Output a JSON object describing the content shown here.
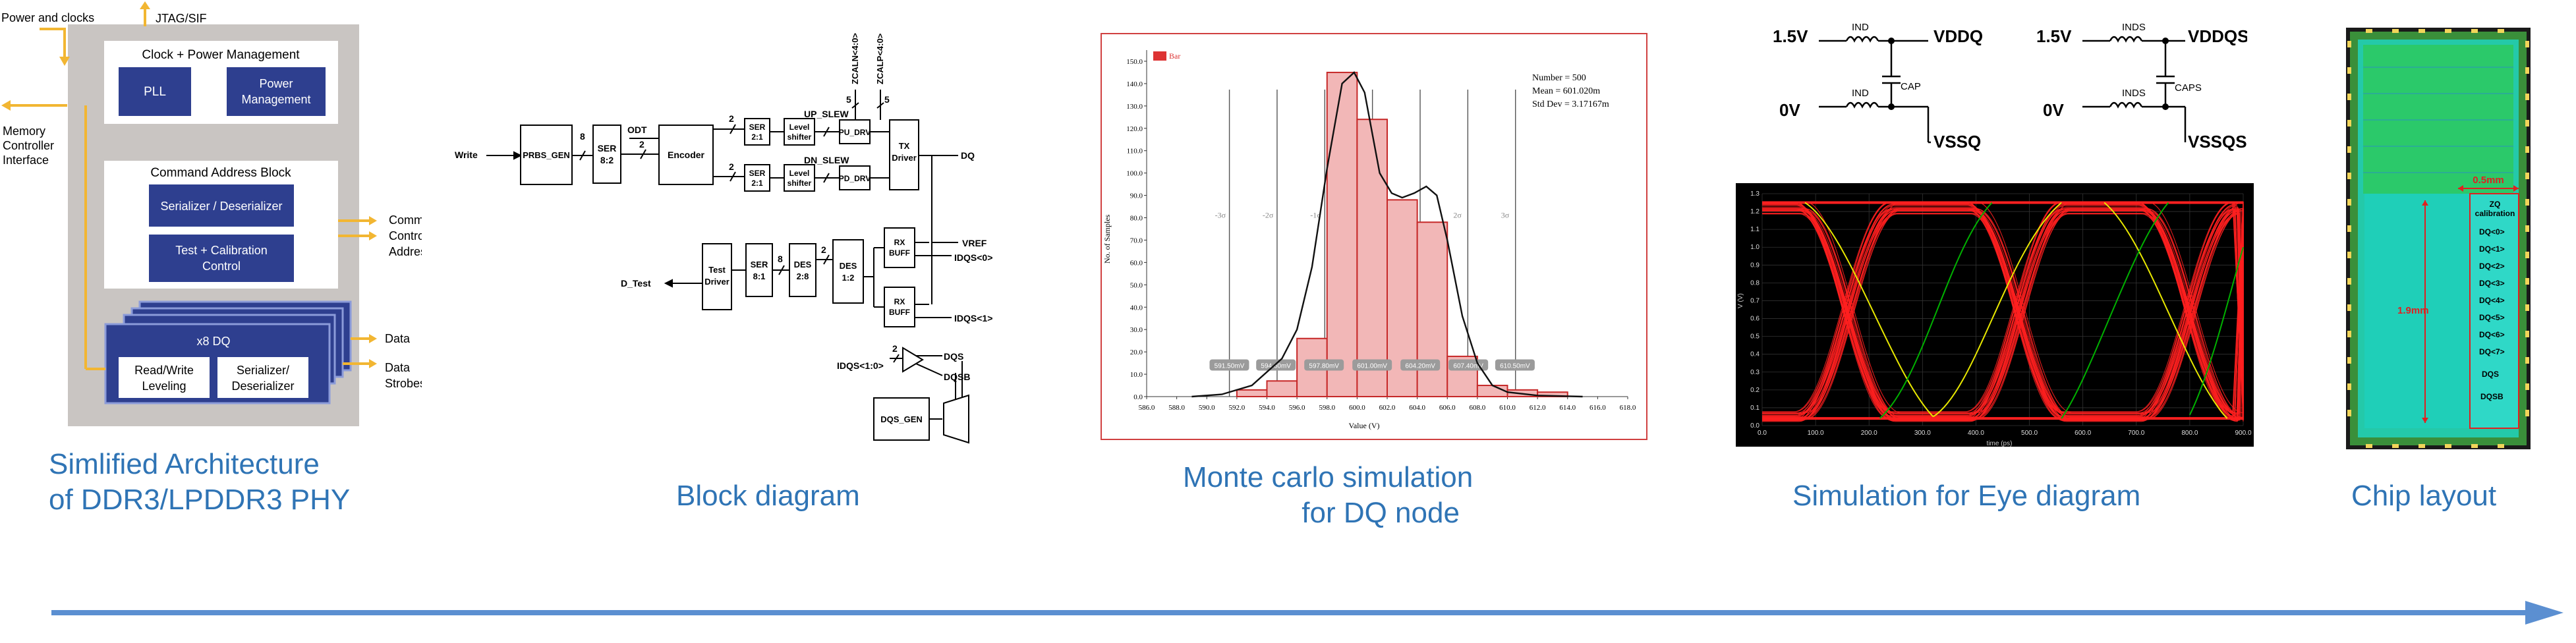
{
  "arch": {
    "power_clocks": "Power and clocks",
    "jtag": "JTAG/SIF",
    "memory_controller": [
      "Memory",
      "Controller",
      "Interface"
    ],
    "clock_power_title": "Clock + Power Management",
    "pll": "PLL",
    "power_mgmt": [
      "Power",
      "Management"
    ],
    "cmd_addr_title": "Command Address Block",
    "serdes": "Serializer / Deserializer",
    "test_cal": [
      "Test + Calibration",
      "Control"
    ],
    "commands": "Commands",
    "control": "Control",
    "addresses": "Addresses",
    "dq_title": "x8 DQ",
    "rw_leveling": [
      "Read/Write",
      "Leveling"
    ],
    "serdes2": [
      "Serializer/",
      "Deserializer"
    ],
    "data": "Data",
    "data_strobes": [
      "Data",
      "Strobes"
    ],
    "caption": [
      "Simlified Architecture",
      "of DDR3/LPDDR3 PHY"
    ]
  },
  "block": {
    "write": "Write",
    "prbs_gen": "PRBS_GEN",
    "n8": "8",
    "ser82": [
      "SER",
      "8:2"
    ],
    "odt": "ODT",
    "n2": "2",
    "encoder": "Encoder",
    "ser21": [
      "SER",
      "2:1"
    ],
    "level_shifter": [
      "Level",
      "shifter"
    ],
    "up_slew": "UP_SLEW",
    "dn_slew": "DN_SLEW",
    "pu_drv": "PU_DRV",
    "pd_drv": "PD_DRV",
    "zcaln": "ZCALN<4:0>",
    "zcalp": "ZCALP<4:0>",
    "n5": "5",
    "tx_driver": [
      "TX",
      "Driver"
    ],
    "dq": "DQ",
    "vref": "VREF",
    "idqs0": "IDQS<0>",
    "idqs1": "IDQS<1>",
    "rx_buff": [
      "RX",
      "BUFF"
    ],
    "des12": [
      "DES",
      "1:2"
    ],
    "des28": [
      "DES",
      "2:8"
    ],
    "ser81": [
      "SER",
      "8:1"
    ],
    "test_driver": [
      "Test",
      "Driver"
    ],
    "d_test": "D_Test",
    "idqs10": "IDQS<1:0>",
    "dqs": "DQS",
    "dqsb": "DQSB",
    "dqs_gen": "DQS_GEN",
    "caption": "Block diagram"
  },
  "monte": {
    "legend": "Bar",
    "stats": [
      "Number = 500",
      "Mean = 601.020m",
      "Std Dev = 3.17167m"
    ],
    "ylabel": "No. of Samples",
    "xlabel": "Value (V)",
    "sigma_labels": [
      "-3σ",
      "-2σ",
      "-1σ",
      "1σ",
      "2σ",
      "3σ"
    ],
    "marker_labels": [
      "591.50mV",
      "594.60mV",
      "597.80mV",
      "601.00mV",
      "604.20mV",
      "607.40mV",
      "610.50mV"
    ],
    "caption": [
      "Monte carlo simulation",
      "for DQ node"
    ]
  },
  "chart_data": {
    "type": "bar",
    "title": "",
    "xlabel": "Value (V)",
    "ylabel": "No. of Samples",
    "x_ticks": [
      "586.0",
      "588.0",
      "590.0",
      "592.0",
      "594.0",
      "596.0",
      "598.0",
      "600.0",
      "602.0",
      "604.0",
      "606.0",
      "608.0",
      "610.0",
      "612.0",
      "614.0",
      "616.0",
      "618.0"
    ],
    "y_ticks": [
      "0.0",
      "10.0",
      "20.0",
      "30.0",
      "40.0",
      "50.0",
      "60.0",
      "70.0",
      "80.0",
      "90.0",
      "100.0",
      "110.0",
      "120.0",
      "130.0",
      "140.0",
      "150.0"
    ],
    "xlim": [
      586,
      618
    ],
    "ylim": [
      0,
      155
    ],
    "bins": [
      [
        592,
        594
      ],
      [
        594,
        596
      ],
      [
        596,
        598
      ],
      [
        598,
        600
      ],
      [
        600,
        602
      ],
      [
        602,
        604
      ],
      [
        604,
        606
      ],
      [
        606,
        608
      ],
      [
        608,
        610
      ],
      [
        610,
        612
      ],
      [
        612,
        614
      ]
    ],
    "values": [
      3,
      7,
      26,
      145,
      124,
      88,
      78,
      18,
      5,
      3,
      2
    ],
    "fit_curve": {
      "x": [
        589,
        591,
        593,
        595,
        596,
        597,
        598,
        599,
        599.8,
        600.5,
        601.5,
        602.3,
        603,
        603.8,
        604.6,
        605.3,
        606,
        607,
        608,
        609,
        610,
        612,
        615
      ],
      "y": [
        0,
        1,
        5,
        17,
        30,
        58,
        102,
        140,
        145,
        136,
        100,
        91,
        89,
        91,
        94,
        90,
        70,
        36,
        15,
        5,
        2,
        0.5,
        0
      ]
    },
    "grid": true,
    "legend": "top-left"
  },
  "eye": {
    "y_ticks": [
      "1.3",
      "1.2",
      "1.1",
      "1.0",
      "0.9",
      "0.8",
      "0.7",
      "0.6",
      "0.5",
      "0.4",
      "0.3",
      "0.2",
      "0.1",
      "0.0"
    ],
    "x_ticks": [
      "0.0",
      "100.0",
      "200.0",
      "300.0",
      "400.0",
      "500.0",
      "600.0",
      "700.0",
      "800.0",
      "900.0"
    ],
    "xlabel": "time (ps)",
    "ylabel": "V (V)",
    "caption": "Simulation for Eye diagram"
  },
  "power": {
    "v15": "1.5V",
    "v0": "0V",
    "ind": "IND",
    "inds": "INDS",
    "cap": "CAP",
    "caps": "CAPS",
    "vddq": "VDDQ",
    "vssq": "VSSQ",
    "vddqs": "VDDQS",
    "vssqs": "VSSQS"
  },
  "chip": {
    "dim_w": "0.5mm",
    "dim_h": "1.9mm",
    "zq_cal": [
      "ZQ",
      "calibration"
    ],
    "pins": [
      "DQ<0>",
      "DQ<1>",
      "DQ<2>",
      "DQ<3>",
      "DQ<4>",
      "DQ<5>",
      "DQ<6>",
      "DQ<7>",
      "DQS",
      "DQSB"
    ],
    "caption": "Chip layout"
  },
  "colors": {
    "accent_blue": "#2f74b5",
    "arrow_blue": "#5b8fd1",
    "box_navy": "#2e3f8f",
    "arch_bg": "#c9c5c2",
    "eye_red": "#ff2020",
    "eye_yellow": "#e8e800",
    "eye_green": "#00b000"
  }
}
